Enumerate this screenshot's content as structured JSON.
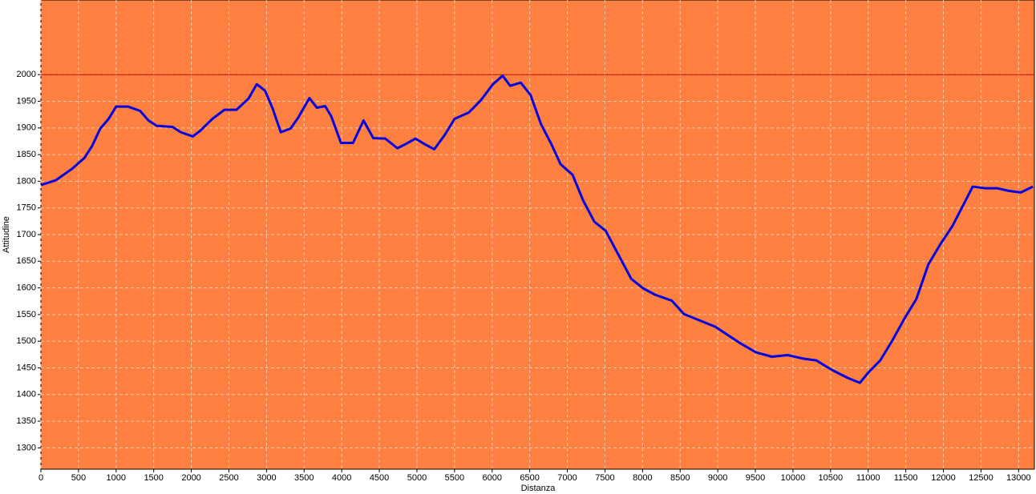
{
  "chart_data": {
    "type": "line",
    "x_label": "Distanza",
    "y_label": "Attitudine",
    "xlim": [
      0,
      13210
    ],
    "ylim": [
      1260,
      2140
    ],
    "xticks": [
      0,
      500,
      1000,
      1500,
      2000,
      2500,
      3000,
      3500,
      4000,
      4500,
      5000,
      5500,
      6000,
      6500,
      7000,
      7500,
      8000,
      8500,
      9000,
      9500,
      10000,
      10500,
      11000,
      11500,
      12000,
      12500,
      13000
    ],
    "yticks": [
      1300,
      1350,
      1400,
      1450,
      1500,
      1550,
      1600,
      1650,
      1700,
      1750,
      1800,
      1850,
      1900,
      1950,
      2000
    ],
    "grid": true,
    "background": "#ff8040",
    "reference_line": {
      "value": 2000,
      "color": "#c00000"
    },
    "series": [
      {
        "color": "#0000e0",
        "x": [
          0,
          200,
          420,
          580,
          680,
          790,
          900,
          1000,
          1160,
          1320,
          1430,
          1540,
          1750,
          1860,
          2020,
          2120,
          2280,
          2440,
          2600,
          2760,
          2870,
          2980,
          3080,
          3190,
          3320,
          3420,
          3570,
          3670,
          3780,
          3860,
          3990,
          4150,
          4290,
          4420,
          4580,
          4740,
          4840,
          4980,
          5110,
          5230,
          5370,
          5500,
          5690,
          5850,
          6010,
          6140,
          6240,
          6380,
          6510,
          6650,
          6790,
          6910,
          7070,
          7210,
          7360,
          7510,
          7680,
          7850,
          8010,
          8170,
          8390,
          8550,
          8760,
          8970,
          9130,
          9290,
          9510,
          9720,
          9930,
          10150,
          10310,
          10520,
          10730,
          10890,
          11000,
          11160,
          11320,
          11480,
          11640,
          11800,
          11960,
          12120,
          12230,
          12390,
          12550,
          12710,
          12870,
          13030,
          13190
        ],
        "values": [
          1793,
          1802,
          1824,
          1844,
          1866,
          1899,
          1917,
          1940,
          1940,
          1932,
          1914,
          1904,
          1902,
          1892,
          1884,
          1895,
          1917,
          1934,
          1934,
          1955,
          1982,
          1970,
          1937,
          1892,
          1899,
          1919,
          1956,
          1938,
          1941,
          1922,
          1872,
          1872,
          1914,
          1881,
          1880,
          1862,
          1869,
          1880,
          1869,
          1860,
          1887,
          1917,
          1929,
          1952,
          1982,
          1998,
          1979,
          1985,
          1962,
          1907,
          1869,
          1832,
          1812,
          1764,
          1724,
          1707,
          1662,
          1617,
          1599,
          1587,
          1576,
          1551,
          1539,
          1527,
          1512,
          1497,
          1479,
          1471,
          1474,
          1467,
          1464,
          1446,
          1431,
          1422,
          1441,
          1464,
          1501,
          1542,
          1579,
          1644,
          1682,
          1716,
          1746,
          1790,
          1787,
          1787,
          1782,
          1779,
          1790
        ]
      }
    ]
  }
}
